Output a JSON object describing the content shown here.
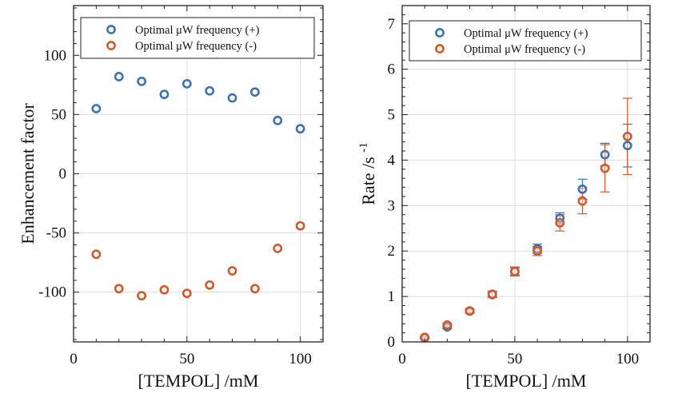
{
  "chart_data": [
    {
      "type": "scatter",
      "xlabel": "[TEMPOL]  /mM",
      "ylabel": "Enhancement factor",
      "xlim": [
        0,
        110
      ],
      "ylim": [
        -142,
        142
      ],
      "xticks": [
        0,
        50,
        100
      ],
      "yticks": [
        -100,
        -50,
        0,
        50,
        100
      ],
      "ytick_labels": [
        "-100",
        "-50",
        "0",
        "50",
        "100"
      ],
      "legend_position": "top-right",
      "series": [
        {
          "name": "Optimal μW  frequency (+)",
          "color": "#3a73b5",
          "x": [
            10,
            20,
            30,
            40,
            50,
            60,
            70,
            80,
            90,
            100
          ],
          "y": [
            55,
            82,
            78,
            67,
            76,
            70,
            64,
            69,
            45,
            38
          ]
        },
        {
          "name": "Optimal μW  frequency (-)",
          "color": "#d1592a",
          "x": [
            10,
            20,
            30,
            40,
            50,
            60,
            70,
            80,
            90,
            100
          ],
          "y": [
            -68,
            -97,
            -103,
            -98,
            -101,
            -94,
            -82,
            -97,
            -63,
            -44
          ]
        }
      ]
    },
    {
      "type": "scatter",
      "xlabel": "[TEMPOL]  /mM",
      "ylabel": "Rate /s",
      "ylabel_superscript": "-1",
      "xlim": [
        0,
        110
      ],
      "ylim": [
        0,
        7.4
      ],
      "xticks": [
        0,
        50,
        100
      ],
      "yticks": [
        0,
        1,
        2,
        3,
        4,
        5,
        6,
        7
      ],
      "ytick_labels": [
        "0",
        "1",
        "2",
        "3",
        "4",
        "5",
        "6",
        "7"
      ],
      "legend_position": "top-right",
      "series": [
        {
          "name": "Optimal μW  frequency (+)",
          "color": "#3a73b5",
          "x": [
            10,
            20,
            30,
            40,
            50,
            60,
            70,
            80,
            90,
            100
          ],
          "y": [
            0.09,
            0.33,
            0.68,
            1.04,
            1.55,
            2.05,
            2.72,
            3.36,
            4.12,
            4.32
          ],
          "err": [
            0.02,
            0.04,
            0.04,
            0.06,
            0.08,
            0.1,
            0.12,
            0.22,
            0.25,
            0.47
          ]
        },
        {
          "name": "Optimal μW  frequency (-)",
          "color": "#d1592a",
          "x": [
            10,
            20,
            30,
            40,
            50,
            60,
            70,
            80,
            90,
            100
          ],
          "y": [
            0.1,
            0.37,
            0.68,
            1.05,
            1.55,
            2.0,
            2.62,
            3.1,
            3.82,
            4.52
          ],
          "err": [
            0.02,
            0.04,
            0.05,
            0.07,
            0.1,
            0.1,
            0.18,
            0.28,
            0.52,
            0.84
          ]
        }
      ]
    }
  ]
}
